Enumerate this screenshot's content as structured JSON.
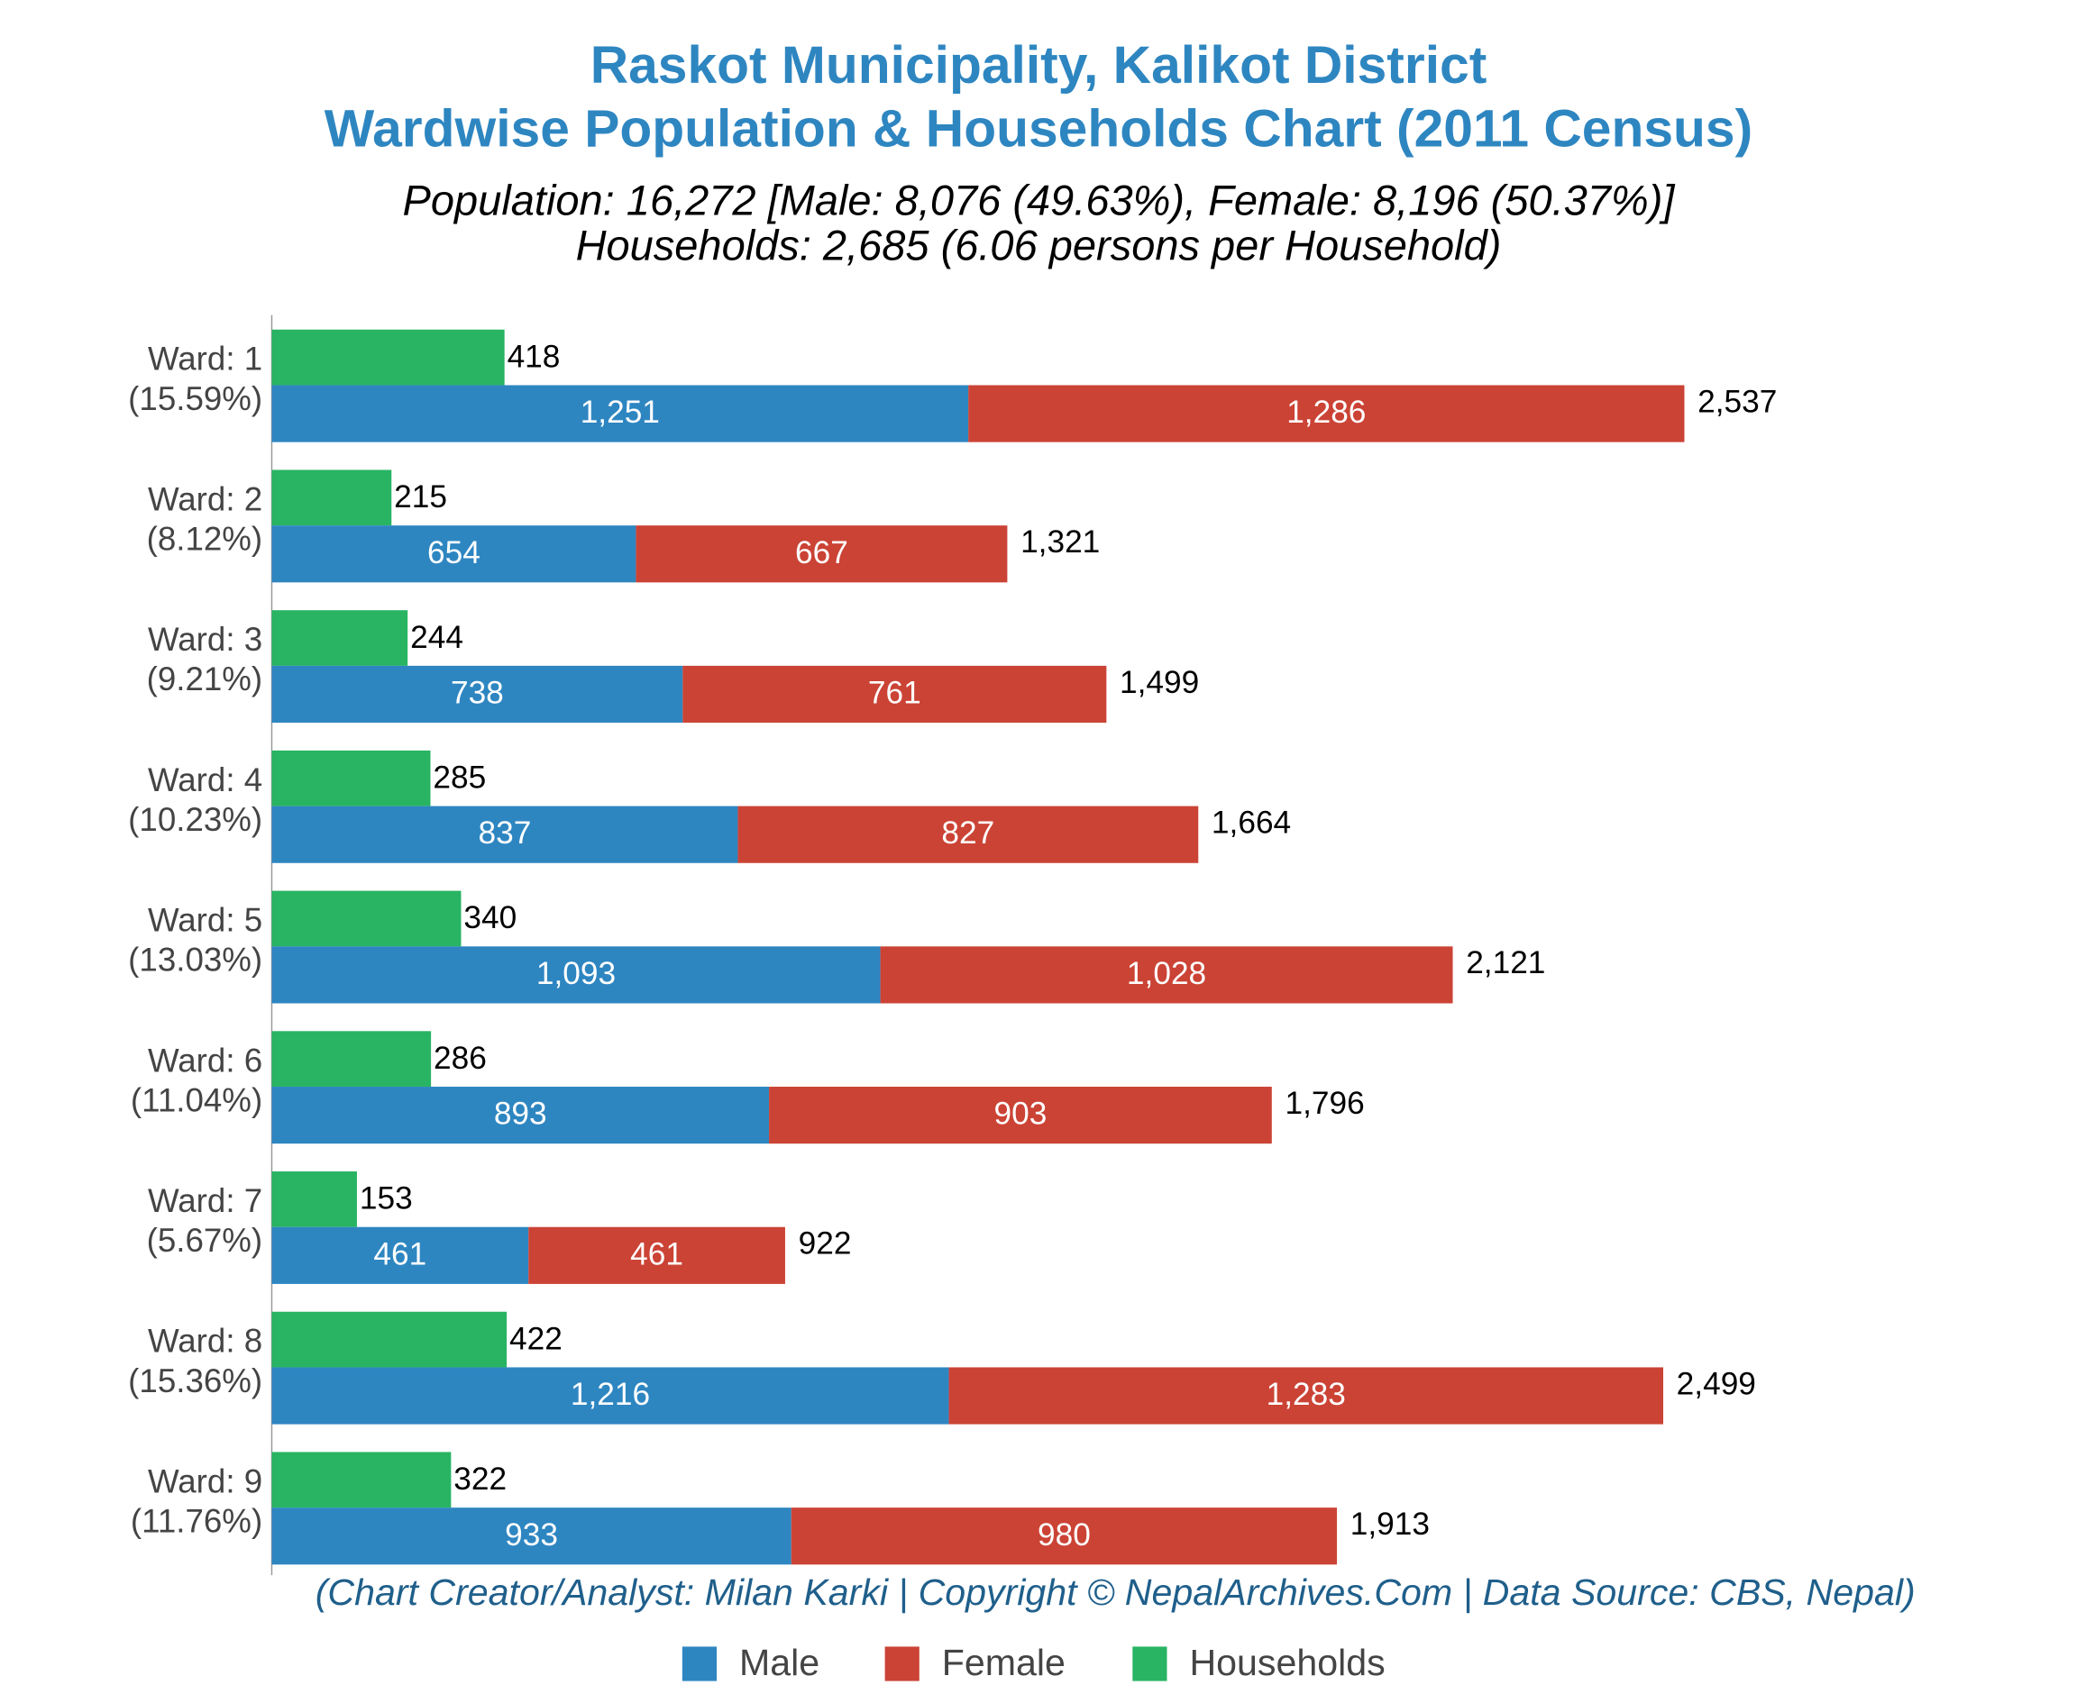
{
  "chart_data": {
    "type": "stacked-barh",
    "title": [
      "Raskot Municipality, Kalikot District",
      "Wardwise Population & Households Chart (2011 Census)"
    ],
    "subtitle": [
      "Population: 16,272 [Male: 8,076 (49.63%), Female: 8,196 (50.37%)]",
      "Households: 2,685 (6.06 persons per Household)"
    ],
    "footer": "(Chart Creator/Analyst: Milan Karki | Copyright © NepalArchives.Com | Data Source: CBS, Nepal)",
    "categories": [
      "Ward: 1",
      "Ward: 2",
      "Ward: 3",
      "Ward: 4",
      "Ward: 5",
      "Ward: 6",
      "Ward: 7",
      "Ward: 8",
      "Ward: 9"
    ],
    "category_shares": [
      "(15.59%)",
      "(8.12%)",
      "(9.21%)",
      "(10.23%)",
      "(13.03%)",
      "(11.04%)",
      "(5.67%)",
      "(15.36%)",
      "(11.76%)"
    ],
    "xlim": [
      0,
      3175
    ],
    "series": [
      {
        "name": "Male",
        "color": "#2e86c1",
        "values": [
          1251,
          654,
          738,
          837,
          1093,
          893,
          461,
          1216,
          933
        ],
        "value_labels": [
          "1,251",
          "654",
          "738",
          "837",
          "1,093",
          "893",
          "461",
          "1,216",
          "933"
        ]
      },
      {
        "name": "Female",
        "color": "#cb4335",
        "values": [
          1286,
          667,
          761,
          827,
          1028,
          903,
          461,
          1283,
          980
        ],
        "value_labels": [
          "1,286",
          "667",
          "761",
          "827",
          "1,028",
          "903",
          "461",
          "1,283",
          "980"
        ]
      },
      {
        "name": "Households",
        "color": "#28b463",
        "values": [
          418,
          215,
          244,
          285,
          340,
          286,
          153,
          422,
          322
        ]
      }
    ],
    "totals": {
      "values": [
        2537,
        1321,
        1499,
        1664,
        2121,
        1796,
        922,
        2499,
        1913
      ],
      "value_labels": [
        "2,537",
        "1,321",
        "1,499",
        "1,664",
        "2,121",
        "1,796",
        "922",
        "2,499",
        "1,913"
      ]
    }
  }
}
